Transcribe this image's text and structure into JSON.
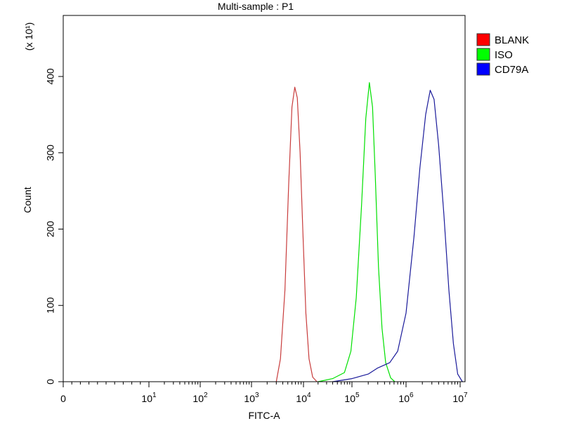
{
  "chart_data": {
    "type": "line",
    "title": "Multi-sample : P1",
    "xlabel": "FITC-A",
    "ylabel": "Count",
    "y_multiplier_label": "(x 10¹)",
    "x_scale": "log",
    "xlim": [
      0,
      14000000
    ],
    "ylim": [
      0,
      480
    ],
    "grid": false,
    "legend_position": "right",
    "x_ticks": [
      {
        "value": 0,
        "base": "0",
        "exp": ""
      },
      {
        "value": 10,
        "base": "10",
        "exp": "1"
      },
      {
        "value": 100,
        "base": "10",
        "exp": "2"
      },
      {
        "value": 1000,
        "base": "10",
        "exp": "3"
      },
      {
        "value": 10000,
        "base": "10",
        "exp": "4"
      },
      {
        "value": 100000,
        "base": "10",
        "exp": "5"
      },
      {
        "value": 1000000,
        "base": "10",
        "exp": "6"
      },
      {
        "value": 10000000,
        "base": "10",
        "exp": "7"
      }
    ],
    "y_ticks": [
      0,
      100,
      200,
      300,
      400
    ],
    "series": [
      {
        "name": "BLANK",
        "color": "#ff0000",
        "line_color": "#c83c3c",
        "x": [
          3000,
          3600,
          4400,
          5200,
          6000,
          6800,
          7600,
          8600,
          9800,
          11200,
          13000,
          15500,
          19000
        ],
        "y": [
          0,
          30,
          120,
          260,
          360,
          386,
          372,
          300,
          190,
          90,
          30,
          6,
          0
        ]
      },
      {
        "name": "ISO",
        "color": "#00ff00",
        "line_color": "#00e000",
        "x": [
          20000,
          40000,
          70000,
          95000,
          120000,
          150000,
          180000,
          210000,
          240000,
          270000,
          310000,
          360000,
          420000,
          520000,
          620000
        ],
        "y": [
          0,
          4,
          12,
          40,
          110,
          230,
          345,
          392,
          360,
          270,
          150,
          70,
          25,
          5,
          0
        ]
      },
      {
        "name": "CD79A",
        "color": "#0000ff",
        "line_color": "#1a1a9a",
        "x": [
          40000,
          100000,
          200000,
          300000,
          500000,
          700000,
          1000000,
          1400000,
          1800000,
          2300000,
          2800000,
          3300000,
          4000000,
          5000000,
          6200000,
          7500000,
          9000000,
          11000000
        ],
        "y": [
          0,
          4,
          10,
          18,
          25,
          40,
          90,
          190,
          280,
          350,
          382,
          370,
          310,
          220,
          120,
          50,
          10,
          0
        ]
      }
    ]
  }
}
